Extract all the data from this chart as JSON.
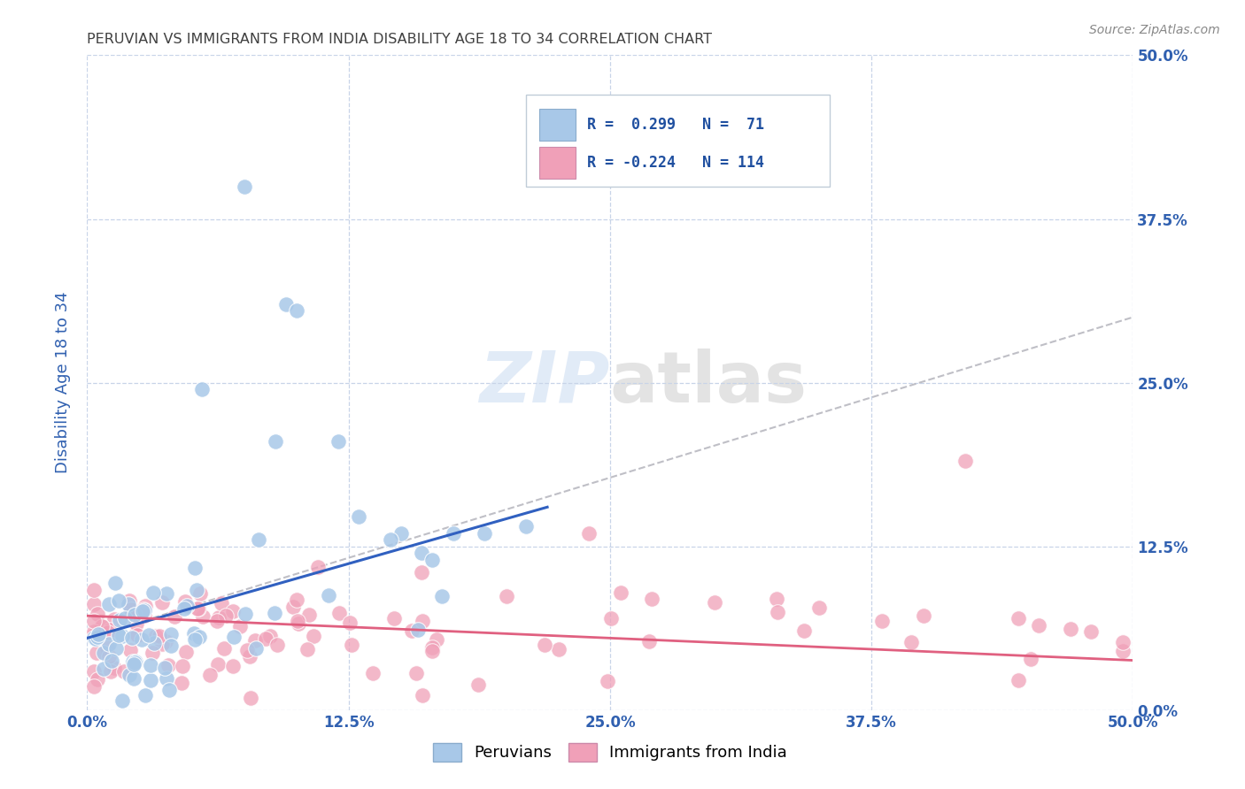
{
  "title": "PERUVIAN VS IMMIGRANTS FROM INDIA DISABILITY AGE 18 TO 34 CORRELATION CHART",
  "source": "Source: ZipAtlas.com",
  "ylabel": "Disability Age 18 to 34",
  "xlim": [
    0.0,
    0.5
  ],
  "ylim": [
    0.0,
    0.5
  ],
  "xtick_labels": [
    "0.0%",
    "12.5%",
    "25.0%",
    "37.5%",
    "50.0%"
  ],
  "xtick_vals": [
    0.0,
    0.125,
    0.25,
    0.375,
    0.5
  ],
  "ytick_labels_right": [
    "0.0%",
    "12.5%",
    "25.0%",
    "37.5%",
    "50.0%"
  ],
  "ytick_vals": [
    0.0,
    0.125,
    0.25,
    0.375,
    0.5
  ],
  "blue_color": "#a8c8e8",
  "pink_color": "#f0a0b8",
  "blue_line_color": "#3060c0",
  "pink_line_color": "#e06080",
  "trend_line_color": "#b8b8c0",
  "background_color": "#ffffff",
  "grid_color": "#c8d4e8",
  "title_color": "#404040",
  "axis_label_color": "#3060b0",
  "tick_color": "#3060b0",
  "legend_r1_val": "0.299",
  "legend_r1_n": "71",
  "legend_r2_val": "-0.224",
  "legend_r2_n": "114",
  "peru_blue_line_x0": 0.0,
  "peru_blue_line_y0": 0.055,
  "peru_blue_line_x1": 0.22,
  "peru_blue_line_y1": 0.155,
  "india_pink_line_x0": 0.0,
  "india_pink_line_y0": 0.072,
  "india_pink_line_x1": 0.5,
  "india_pink_line_y1": 0.038,
  "dashed_line_x0": 0.0,
  "dashed_line_y0": 0.055,
  "dashed_line_x1": 0.5,
  "dashed_line_y1": 0.3
}
